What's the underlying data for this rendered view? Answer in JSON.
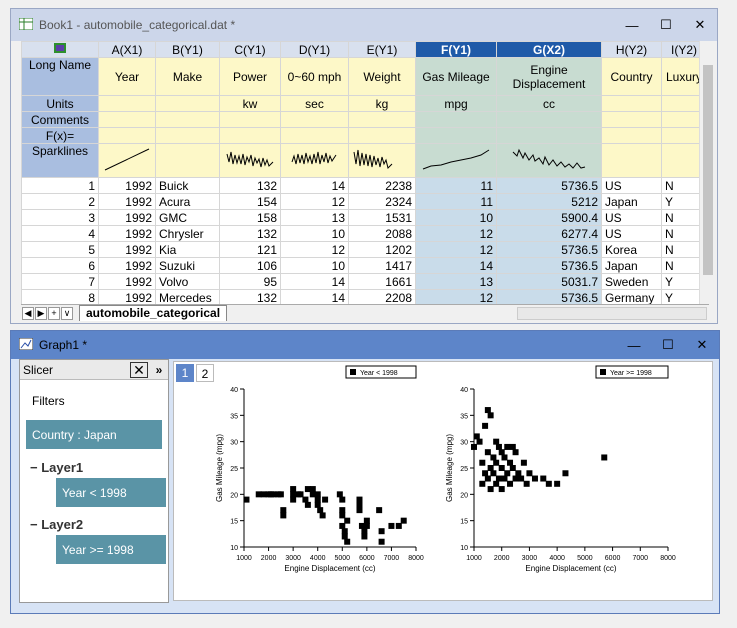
{
  "book": {
    "title": "Book1 - automobile_categorical.dat *",
    "columns": [
      "A(X1)",
      "B(Y1)",
      "C(Y1)",
      "D(Y1)",
      "E(Y1)",
      "F(Y1)",
      "G(X2)",
      "H(Y2)",
      "I(Y2)"
    ],
    "row_labels": [
      "Long Name",
      "Units",
      "Comments",
      "F(x)=",
      "Sparklines"
    ],
    "long_names": [
      "Year",
      "Make",
      "Power",
      "0~60 mph",
      "Weight",
      "Gas Mileage",
      "Engine Displacement",
      "Country",
      "Luxury"
    ],
    "units": [
      "",
      "",
      "kw",
      "sec",
      "kg",
      "mpg",
      "cc",
      "",
      ""
    ],
    "rows": [
      [
        "1",
        "1992",
        "Buick",
        "132",
        "14",
        "2238",
        "11",
        "5736.5",
        "US",
        "N"
      ],
      [
        "2",
        "1992",
        "Acura",
        "154",
        "12",
        "2324",
        "11",
        "5212",
        "Japan",
        "Y"
      ],
      [
        "3",
        "1992",
        "GMC",
        "158",
        "13",
        "1531",
        "10",
        "5900.4",
        "US",
        "N"
      ],
      [
        "4",
        "1992",
        "Chrysler",
        "132",
        "10",
        "2088",
        "12",
        "6277.4",
        "US",
        "N"
      ],
      [
        "5",
        "1992",
        "Kia",
        "121",
        "12",
        "1202",
        "12",
        "5736.5",
        "Korea",
        "N"
      ],
      [
        "6",
        "1992",
        "Suzuki",
        "106",
        "10",
        "1417",
        "14",
        "5736.5",
        "Japan",
        "N"
      ],
      [
        "7",
        "1992",
        "Volvo",
        "95",
        "14",
        "1661",
        "13",
        "5031.7",
        "Sweden",
        "Y"
      ],
      [
        "8",
        "1992",
        "Mercedes",
        "132",
        "14",
        "2208",
        "12",
        "5736.5",
        "Germany",
        "Y"
      ]
    ],
    "sheet_tab": "automobile_categorical",
    "nav": [
      "◀",
      "▶",
      "+",
      "∨"
    ]
  },
  "graph": {
    "title": "Graph1 *",
    "slicer_title": "Slicer",
    "filters_label": "Filters",
    "filter_chip": "Country : Japan",
    "layer1": "Layer1",
    "layer1_chip": "Year < 1998",
    "layer2": "Layer2",
    "layer2_chip": "Year >= 1998",
    "tabs": [
      "1",
      "2"
    ]
  },
  "chart_data": [
    {
      "type": "scatter",
      "legend": "Year < 1998",
      "xlabel": "Engine Displacement (cc)",
      "ylabel": "Gas Mileage (mpg)",
      "xlim": [
        1000,
        8000
      ],
      "ylim": [
        10,
        40
      ],
      "xticks": [
        1000,
        2000,
        3000,
        4000,
        5000,
        6000,
        7000,
        8000
      ],
      "yticks": [
        10,
        15,
        20,
        25,
        30,
        35,
        40
      ],
      "x": [
        1100,
        1600,
        1800,
        2000,
        2100,
        2200,
        2400,
        2500,
        2600,
        2600,
        3000,
        3000,
        3000,
        3200,
        3300,
        3500,
        3600,
        3600,
        3800,
        3800,
        4000,
        4000,
        4000,
        4100,
        4200,
        4300,
        4900,
        5000,
        5000,
        5000,
        5000,
        5100,
        5100,
        5200,
        5200,
        5700,
        5700,
        5700,
        5800,
        5900,
        5900,
        6000,
        6000,
        6500,
        6600,
        6600,
        7000,
        7300,
        7500
      ],
      "y": [
        19,
        20,
        20,
        20,
        20,
        20,
        20,
        20,
        17,
        16,
        21,
        20,
        19,
        20,
        20,
        19,
        18,
        21,
        20,
        21,
        20,
        19,
        18,
        17,
        16,
        19,
        20,
        19,
        17,
        16,
        14,
        13,
        12,
        15,
        11,
        19,
        18,
        17,
        14,
        13,
        12,
        14,
        15,
        17,
        13,
        11,
        14,
        14,
        15
      ]
    },
    {
      "type": "scatter",
      "legend": "Year >= 1998",
      "xlabel": "Engine Displacement (cc)",
      "ylabel": "Gas Mileage (mpg)",
      "xlim": [
        1000,
        8000
      ],
      "ylim": [
        10,
        40
      ],
      "xticks": [
        1000,
        2000,
        3000,
        4000,
        5000,
        6000,
        7000,
        8000
      ],
      "yticks": [
        10,
        15,
        20,
        25,
        30,
        35,
        40
      ],
      "x": [
        1000,
        1100,
        1200,
        1300,
        1300,
        1400,
        1400,
        1500,
        1500,
        1500,
        1600,
        1600,
        1600,
        1700,
        1700,
        1800,
        1800,
        1800,
        1900,
        1900,
        2000,
        2000,
        2000,
        2100,
        2100,
        2200,
        2200,
        2300,
        2300,
        2400,
        2400,
        2500,
        2500,
        2600,
        2700,
        2800,
        2900,
        3000,
        3200,
        3500,
        3700,
        4000,
        4300,
        5700
      ],
      "y": [
        29,
        31,
        30,
        26,
        22,
        33,
        24,
        36,
        28,
        23,
        35,
        25,
        21,
        27,
        24,
        30,
        26,
        22,
        29,
        23,
        28,
        25,
        21,
        27,
        23,
        29,
        24,
        26,
        22,
        29,
        25,
        28,
        23,
        24,
        23,
        26,
        22,
        24,
        23,
        23,
        22,
        22,
        24,
        27
      ]
    }
  ]
}
